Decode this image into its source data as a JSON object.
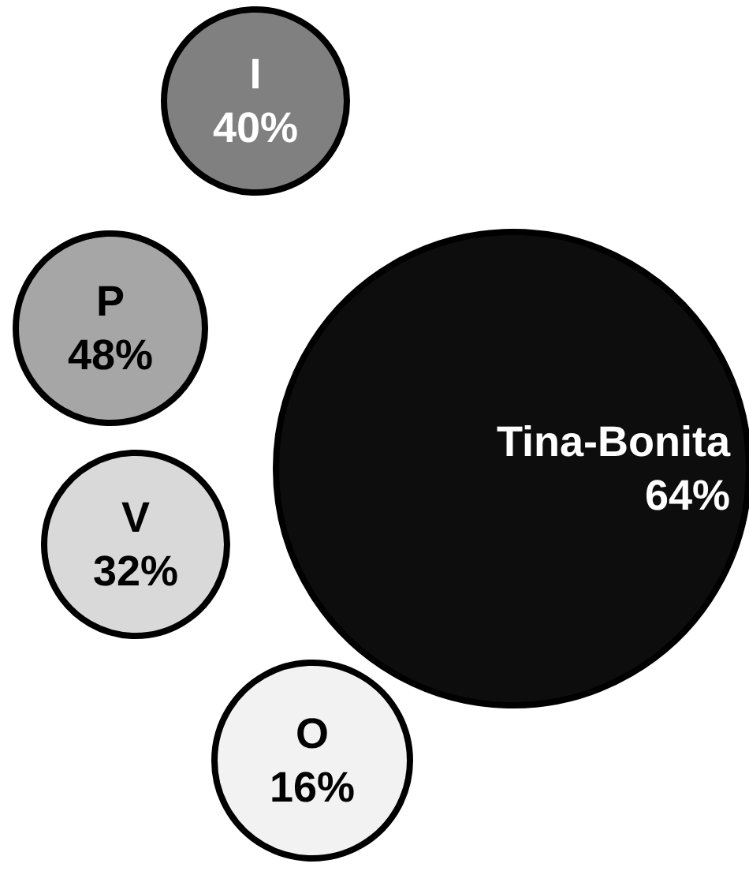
{
  "chart_data": {
    "type": "other",
    "categories": [
      "Tina-Bonita",
      "I",
      "P",
      "V",
      "O"
    ],
    "values": [
      64,
      40,
      48,
      32,
      16
    ],
    "value_labels": [
      "64%",
      "40%",
      "48%",
      "32%",
      "16%"
    ],
    "colors": [
      "#0d0d0d",
      "#808080",
      "#a6a6a6",
      "#d9d9d9",
      "#f2f2f2"
    ]
  }
}
